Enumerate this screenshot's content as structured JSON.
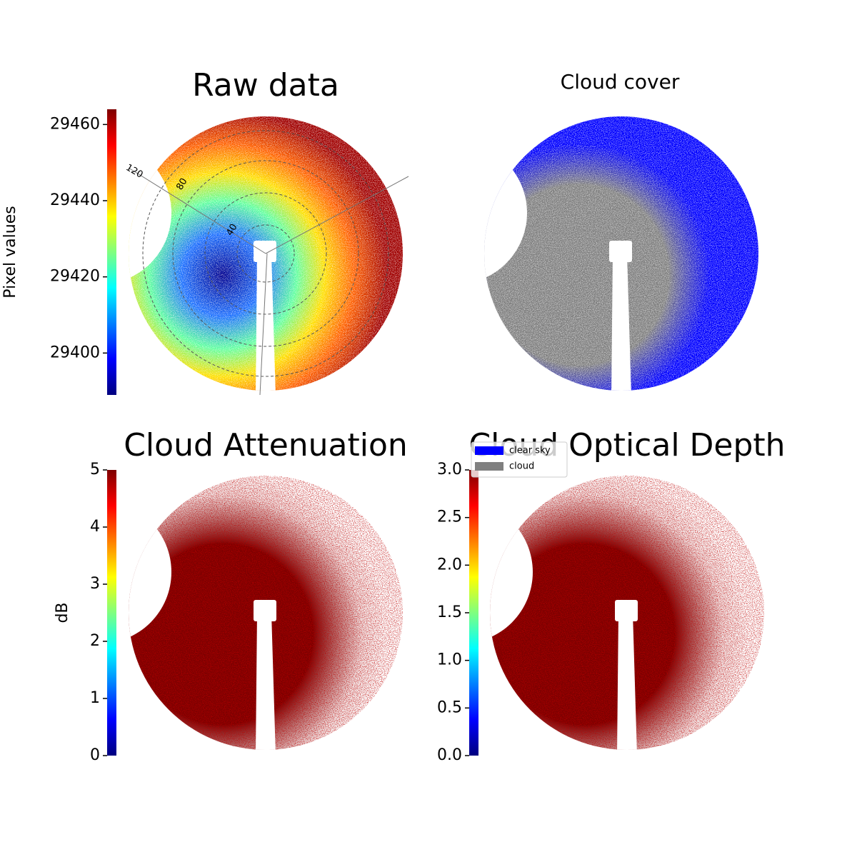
{
  "chart_data": [
    {
      "type": "image",
      "title": "Raw data",
      "colorbar_label": "Pixel values",
      "colormap": "jet",
      "clim": [
        29389,
        29464
      ],
      "cticks": [
        29400,
        29420,
        29440,
        29460
      ],
      "annotations": [
        "120",
        "80",
        "40"
      ]
    },
    {
      "type": "image",
      "title": "Cloud cover",
      "series": [
        {
          "name": "clear sky",
          "color": "#0000ff"
        },
        {
          "name": "cloud",
          "color": "#808080"
        }
      ]
    },
    {
      "type": "image",
      "title": "Cloud Attenuation",
      "colorbar_label": "dB",
      "colormap": "jet",
      "clim": [
        0,
        5
      ],
      "cticks": [
        0,
        1,
        2,
        3,
        4,
        5
      ]
    },
    {
      "type": "image",
      "title": "Cloud Optical Depth",
      "colormap": "jet",
      "clim": [
        0,
        3
      ],
      "cticks": [
        {
          "value": 0,
          "label": "0.0"
        },
        {
          "value": 0.5,
          "label": "0.5"
        },
        {
          "value": 1,
          "label": "1.0"
        },
        {
          "value": 1.5,
          "label": "1.5"
        },
        {
          "value": 2,
          "label": "2.0"
        },
        {
          "value": 2.5,
          "label": "2.5"
        },
        {
          "value": 3,
          "label": "3.0"
        }
      ]
    }
  ]
}
